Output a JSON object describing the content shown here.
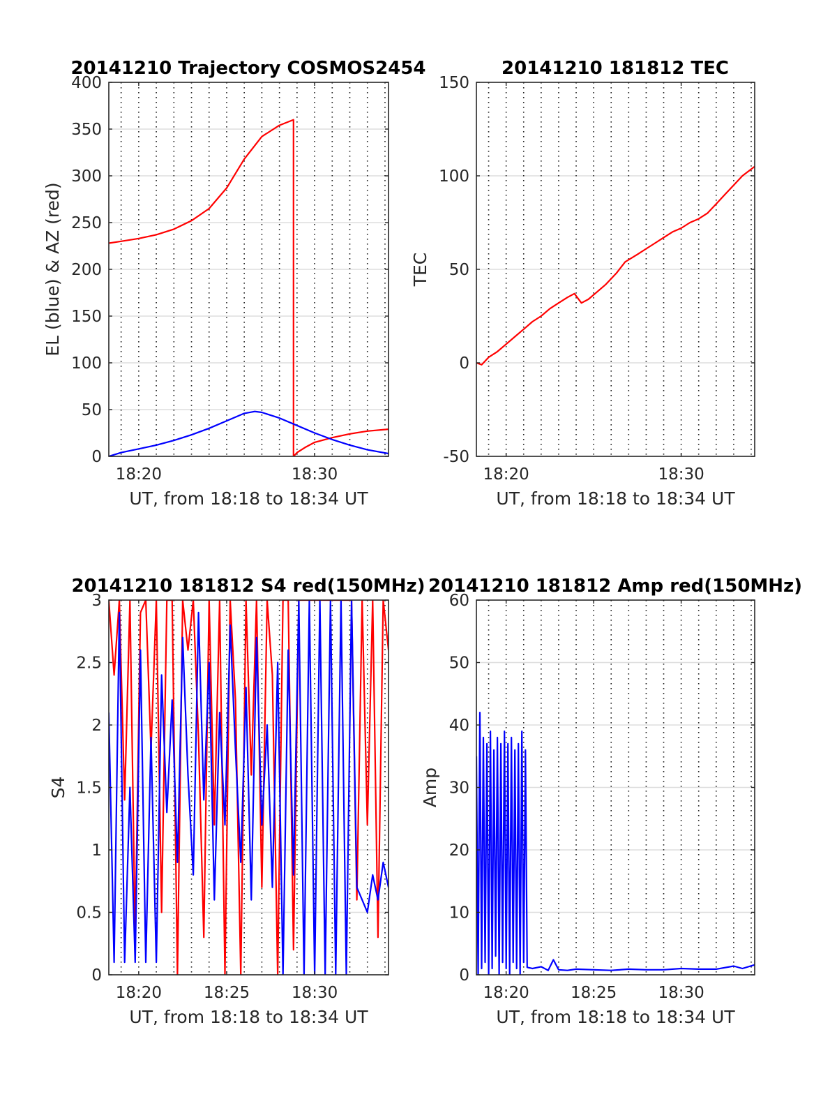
{
  "chart_data": [
    {
      "type": "line",
      "title": "20141210 Trajectory COSMOS2454",
      "xlabel": "UT, from 18:18 to 18:34 UT",
      "ylabel": "EL (blue) & AZ (red)",
      "xlim": [
        18.3,
        34.2
      ],
      "ylim": [
        0,
        400
      ],
      "xtick_values": [
        20,
        30
      ],
      "xtick_labels": [
        "18:20",
        "18:30"
      ],
      "yticks": [
        0,
        50,
        100,
        150,
        200,
        250,
        300,
        350,
        400
      ],
      "grid": true,
      "series": [
        {
          "color": "#ff0000",
          "x": [
            18.3,
            19,
            20,
            21,
            22,
            23,
            24,
            25,
            26,
            27,
            28,
            28.8,
            28.8,
            29,
            29.5,
            30,
            31,
            32,
            33,
            34.2
          ],
          "y": [
            228,
            230,
            233,
            237,
            243,
            252,
            265,
            287,
            318,
            342,
            354,
            360,
            0,
            4,
            10,
            15,
            20,
            24,
            27,
            29
          ]
        },
        {
          "color": "#0000ff",
          "x": [
            18.3,
            19,
            20,
            21,
            22,
            23,
            24,
            25,
            26,
            26.6,
            27,
            28,
            29,
            30,
            31,
            32,
            33,
            34.2
          ],
          "y": [
            0,
            4,
            8,
            12,
            17,
            23,
            30,
            38,
            46,
            48,
            47,
            41,
            33,
            25,
            18,
            12,
            7,
            3
          ]
        }
      ]
    },
    {
      "type": "line",
      "title": "20141210 181812 TEC",
      "xlabel": "UT, from 18:18 to 18:34 UT",
      "ylabel": "TEC",
      "xlim": [
        18.3,
        34.2
      ],
      "ylim": [
        -50,
        150
      ],
      "xtick_values": [
        20,
        30
      ],
      "xtick_labels": [
        "18:20",
        "18:30"
      ],
      "yticks": [
        -50,
        0,
        50,
        100,
        150
      ],
      "grid": true,
      "series": [
        {
          "color": "#ff0000",
          "x": [
            18.3,
            18.6,
            19,
            19.5,
            20,
            20.5,
            21,
            21.5,
            22,
            22.5,
            23,
            23.5,
            23.9,
            24.3,
            24.7,
            25.2,
            25.7,
            26.3,
            26.8,
            27.5,
            28,
            28.5,
            29,
            29.5,
            30,
            30.5,
            31,
            31.5,
            32,
            32.5,
            33,
            33.5,
            34.2
          ],
          "y": [
            0,
            -1,
            3,
            6,
            10,
            14,
            18,
            22,
            25,
            29,
            32,
            35,
            37,
            32,
            34,
            38,
            42,
            48,
            54,
            58,
            61,
            64,
            67,
            70,
            72,
            75,
            77,
            80,
            85,
            90,
            95,
            100,
            105
          ]
        }
      ]
    },
    {
      "type": "line",
      "title": "20141210 181812 S4 red(150MHz)",
      "xlabel": "UT, from 18:18 to 18:34 UT",
      "ylabel": "S4",
      "xlim": [
        18.3,
        34.2
      ],
      "ylim": [
        0,
        3
      ],
      "xtick_values": [
        20,
        25,
        30
      ],
      "xtick_labels": [
        "18:20",
        "18:25",
        "18:30"
      ],
      "yticks": [
        0,
        0.5,
        1,
        1.5,
        2,
        2.5,
        3
      ],
      "ytick_labels": [
        "0",
        "0.5",
        "1",
        "1.5",
        "2",
        "2.5",
        "3"
      ],
      "grid": true,
      "series": [
        {
          "color": "#ff0000",
          "x": [
            18.3,
            18.6,
            18.9,
            19.2,
            19.5,
            19.8,
            20.1,
            20.4,
            20.7,
            21.0,
            21.3,
            21.6,
            21.9,
            22.2,
            22.5,
            22.8,
            23.1,
            23.4,
            23.7,
            24.0,
            24.3,
            24.6,
            24.9,
            25.2,
            25.5,
            25.8,
            26.1,
            26.4,
            26.7,
            27.0,
            27.3,
            27.6,
            27.9,
            28.2,
            28.5,
            28.8,
            29.1,
            29.4,
            29.7,
            30.0,
            30.3,
            30.6,
            30.9,
            31.2,
            31.5,
            31.8,
            32.1,
            32.4,
            32.7,
            33.0,
            33.3,
            33.6,
            33.9,
            34.2
          ],
          "y": [
            3,
            2.4,
            3,
            1.4,
            3,
            0.3,
            2.9,
            3,
            1.8,
            3,
            0.5,
            3,
            3,
            0,
            3,
            2.6,
            3,
            1.9,
            0.3,
            3,
            1.2,
            3,
            0,
            3,
            2.2,
            0,
            3,
            1.6,
            3,
            0.7,
            3,
            2.4,
            0,
            3,
            3,
            0.2,
            3,
            3,
            3,
            3,
            3,
            3,
            3,
            3,
            3,
            3,
            3,
            0.6,
            3,
            1.2,
            3,
            0.3,
            3,
            2.6
          ]
        },
        {
          "color": "#0000ff",
          "x": [
            18.3,
            18.6,
            18.9,
            19.2,
            19.5,
            19.8,
            20.1,
            20.4,
            20.7,
            21.0,
            21.3,
            21.6,
            21.9,
            22.2,
            22.5,
            22.8,
            23.1,
            23.4,
            23.7,
            24.0,
            24.3,
            24.6,
            24.9,
            25.2,
            25.5,
            25.8,
            26.1,
            26.4,
            26.7,
            27.0,
            27.3,
            27.6,
            27.9,
            28.2,
            28.5,
            28.8,
            29.1,
            29.4,
            29.7,
            30.0,
            30.3,
            30.6,
            30.9,
            31.2,
            31.5,
            31.8,
            32.1,
            32.4,
            32.7,
            33.0,
            33.3,
            33.6,
            33.9,
            34.2
          ],
          "y": [
            2.1,
            0.1,
            2.9,
            0.1,
            1.5,
            0.1,
            2.6,
            0.1,
            1.9,
            0.1,
            2.4,
            1.3,
            2.2,
            0.9,
            2.7,
            1.6,
            0.8,
            2.9,
            1.4,
            2.5,
            0.6,
            2.1,
            1.2,
            2.8,
            1.8,
            0.9,
            2.3,
            0.6,
            2.7,
            1.2,
            2.0,
            0.7,
            2.5,
            0.0,
            2.6,
            0.8,
            3,
            0,
            3,
            0,
            3,
            0,
            3,
            0,
            3,
            0,
            3,
            0.7,
            0.6,
            0.5,
            0.8,
            0.6,
            0.9,
            0.7
          ]
        }
      ]
    },
    {
      "type": "line",
      "title": "20141210 181812 Amp red(150MHz)",
      "xlabel": "UT, from 18:18 to 18:34 UT",
      "ylabel": "Amp",
      "xlim": [
        18.3,
        34.2
      ],
      "ylim": [
        0,
        60
      ],
      "xtick_values": [
        20,
        25,
        30
      ],
      "xtick_labels": [
        "18:20",
        "18:25",
        "18:30"
      ],
      "yticks": [
        0,
        10,
        20,
        30,
        40,
        50,
        60
      ],
      "grid": true,
      "series": [
        {
          "color": "#0000ff",
          "x": [
            18.3,
            18.4,
            18.5,
            18.6,
            18.7,
            18.8,
            18.9,
            19.0,
            19.1,
            19.2,
            19.3,
            19.4,
            19.5,
            19.6,
            19.7,
            19.8,
            19.9,
            20.0,
            20.1,
            20.2,
            20.3,
            20.4,
            20.5,
            20.6,
            20.7,
            20.8,
            20.9,
            21.0,
            21.1,
            21.2,
            21.5,
            22.0,
            22.4,
            22.7,
            23.0,
            23.5,
            24.0,
            25.0,
            26.0,
            27.0,
            28.0,
            29.0,
            30.0,
            31.0,
            32.0,
            33.0,
            33.5,
            34.2
          ],
          "y": [
            35,
            0,
            42,
            1,
            38,
            2,
            37,
            0,
            39,
            1,
            36,
            3,
            38,
            0,
            37,
            2,
            39,
            1,
            37,
            0,
            38,
            2,
            36,
            1,
            37,
            0,
            39,
            2,
            36,
            1.2,
            1.0,
            1.3,
            0.7,
            2.4,
            0.8,
            0.7,
            0.9,
            0.8,
            0.7,
            0.9,
            0.8,
            0.8,
            1.0,
            0.9,
            0.9,
            1.4,
            1.0,
            1.6
          ]
        }
      ]
    }
  ]
}
